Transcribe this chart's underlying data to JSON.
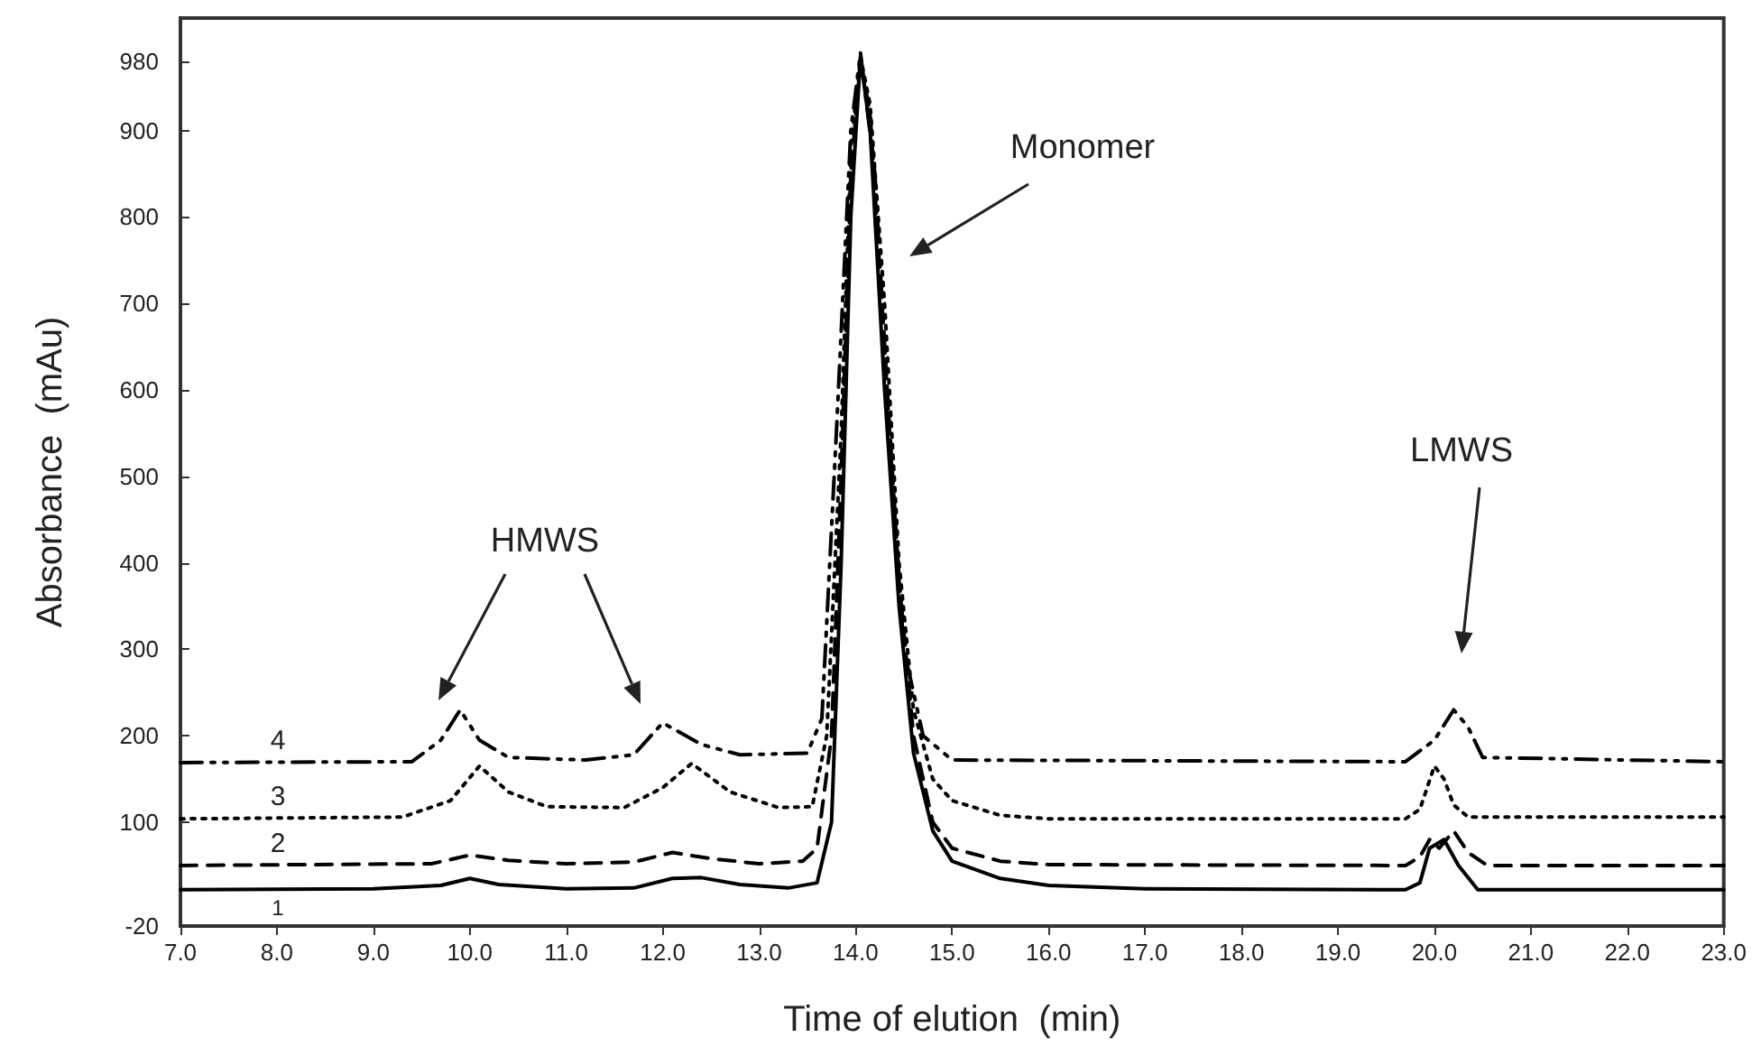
{
  "chart_data": {
    "type": "line",
    "xlabel": "Time of elution  (min)",
    "ylabel": "Absorbance  (mAu)",
    "xlim": [
      7,
      23
    ],
    "xticks": [
      {
        "value": 7,
        "label": "7.0"
      },
      {
        "value": 8,
        "label": "8.0"
      },
      {
        "value": 9,
        "label": "9.0"
      },
      {
        "value": 10,
        "label": "10.0"
      },
      {
        "value": 11,
        "label": "11.0"
      },
      {
        "value": 12,
        "label": "12.0"
      },
      {
        "value": 13,
        "label": "13.0"
      },
      {
        "value": 14,
        "label": "14.0"
      },
      {
        "value": 15,
        "label": "15.0"
      },
      {
        "value": 16,
        "label": "16.0"
      },
      {
        "value": 17,
        "label": "17.0"
      },
      {
        "value": 18,
        "label": "18.0"
      },
      {
        "value": 19,
        "label": "19.0"
      },
      {
        "value": 20,
        "label": "20.0"
      },
      {
        "value": 21,
        "label": "21.0"
      },
      {
        "value": 22,
        "label": "22.0"
      },
      {
        "value": 23,
        "label": "23.0"
      }
    ],
    "ylim": [
      -20,
      1030
    ],
    "yticks": [
      -20,
      100,
      200,
      300,
      400,
      500,
      600,
      700,
      800,
      900,
      980
    ],
    "grid": false,
    "marker": "none",
    "annotations": [
      "HMWS",
      "Monomer",
      "LMWS"
    ],
    "series": [
      {
        "name": "1",
        "color": "#000000",
        "line_style": "solid",
        "x": [
          7,
          9,
          9.7,
          10.0,
          10.3,
          11,
          11.7,
          12.1,
          12.4,
          12.8,
          13.3,
          13.6,
          13.75,
          13.85,
          13.95,
          14.05,
          14.15,
          14.3,
          14.45,
          14.6,
          14.8,
          15.0,
          15.5,
          16.0,
          17,
          19.7,
          19.85,
          19.95,
          20.1,
          20.25,
          20.45,
          23
        ],
        "values": [
          22,
          23,
          27,
          35,
          28,
          23,
          24,
          35,
          36,
          28,
          24,
          30,
          100,
          400,
          800,
          985,
          900,
          600,
          350,
          180,
          90,
          55,
          35,
          27,
          23,
          22,
          30,
          70,
          80,
          50,
          22,
          22
        ]
      },
      {
        "name": "2",
        "color": "#000000",
        "line_style": "dashed",
        "x": [
          7,
          9.6,
          10.0,
          10.4,
          11,
          11.7,
          12.1,
          12.5,
          13,
          13.45,
          13.6,
          13.75,
          13.85,
          13.95,
          14.05,
          14.15,
          14.3,
          14.45,
          14.6,
          14.8,
          15.0,
          15.5,
          16,
          19.7,
          19.85,
          19.95,
          20.05,
          20.2,
          20.35,
          20.55,
          23
        ],
        "values": [
          50,
          52,
          62,
          56,
          52,
          54,
          65,
          58,
          52,
          55,
          70,
          200,
          500,
          850,
          980,
          920,
          650,
          380,
          200,
          100,
          70,
          55,
          51,
          50,
          60,
          80,
          70,
          90,
          65,
          50,
          50
        ]
      },
      {
        "name": "3",
        "color": "#000000",
        "line_style": "dotted",
        "x": [
          7,
          9.3,
          9.8,
          10.1,
          10.4,
          10.8,
          11.6,
          12.0,
          12.3,
          12.7,
          13.2,
          13.55,
          13.7,
          13.85,
          13.95,
          14.05,
          14.15,
          14.3,
          14.45,
          14.6,
          14.8,
          15.0,
          15.5,
          16,
          19.7,
          19.85,
          20.0,
          20.1,
          20.2,
          20.35,
          23
        ],
        "values": [
          104,
          106,
          125,
          165,
          135,
          118,
          117,
          140,
          168,
          135,
          117,
          118,
          200,
          550,
          880,
          985,
          930,
          700,
          400,
          230,
          150,
          125,
          108,
          104,
          104,
          115,
          165,
          150,
          120,
          106,
          106
        ]
      },
      {
        "name": "4",
        "color": "#000000",
        "line_style": "dashdot",
        "x": [
          7,
          9.4,
          9.7,
          9.9,
          10.1,
          10.4,
          11.2,
          11.7,
          12.0,
          12.4,
          12.8,
          13.5,
          13.65,
          13.8,
          13.95,
          14.05,
          14.2,
          14.35,
          14.5,
          14.7,
          15.0,
          19.7,
          20.0,
          20.2,
          20.35,
          20.5,
          23
        ],
        "values": [
          169,
          170,
          195,
          230,
          195,
          175,
          172,
          178,
          215,
          190,
          178,
          180,
          220,
          550,
          900,
          990,
          850,
          550,
          300,
          200,
          172,
          170,
          195,
          230,
          210,
          175,
          170
        ]
      }
    ]
  }
}
